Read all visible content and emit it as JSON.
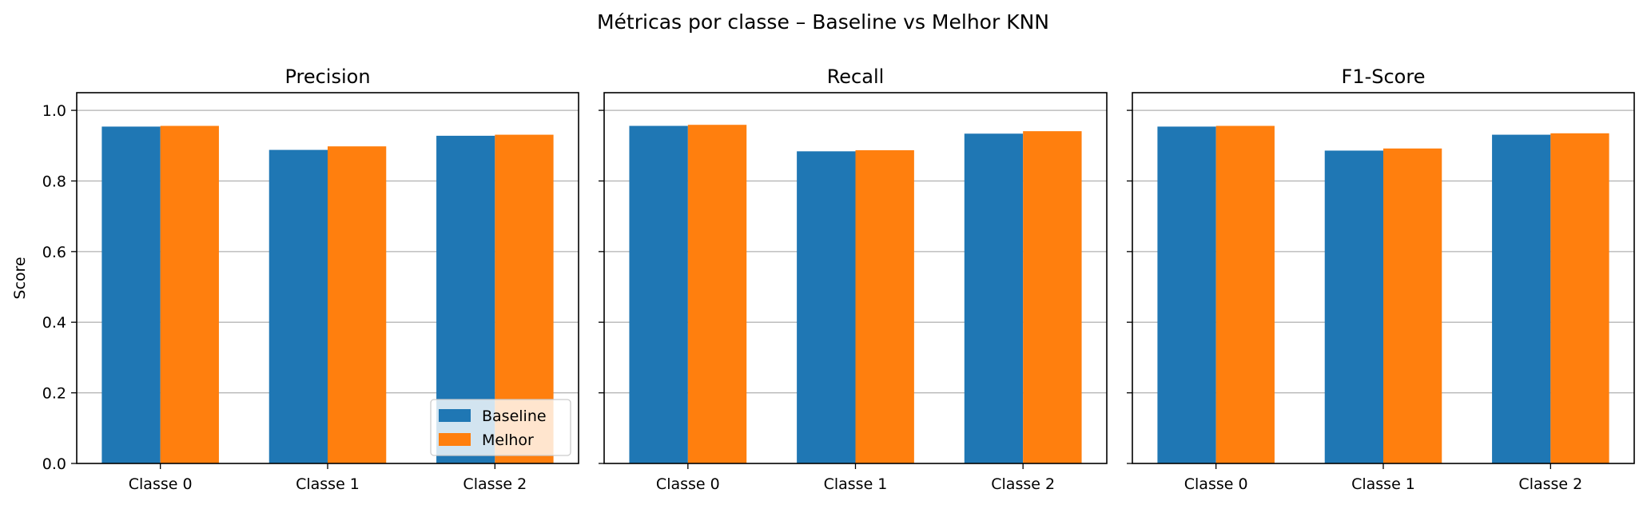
{
  "figure": {
    "suptitle": "Métricas por classe – Baseline vs Melhor KNN"
  },
  "colors": {
    "baseline": "#1f77b4",
    "melhor": "#ff7f0e",
    "grid": "#b0b0b0",
    "axis": "#000000"
  },
  "legend": {
    "placement": "lower-right",
    "entries": [
      "Baseline",
      "Melhor"
    ]
  },
  "chart_data": [
    {
      "type": "bar",
      "title": "Precision",
      "ylabel": "Score",
      "categories": [
        "Classe 0",
        "Classe 1",
        "Classe 2"
      ],
      "ylim": [
        0,
        1.05
      ],
      "yticks": [
        "0.0",
        "0.2",
        "0.4",
        "0.6",
        "0.8",
        "1.0"
      ],
      "grid": "y",
      "series": [
        {
          "name": "Baseline",
          "values": [
            0.954,
            0.888,
            0.928
          ]
        },
        {
          "name": "Melhor",
          "values": [
            0.956,
            0.898,
            0.931
          ]
        }
      ]
    },
    {
      "type": "bar",
      "title": "Recall",
      "ylabel": "",
      "categories": [
        "Classe 0",
        "Classe 1",
        "Classe 2"
      ],
      "ylim": [
        0,
        1.05
      ],
      "yticks": [
        "0.0",
        "0.2",
        "0.4",
        "0.6",
        "0.8",
        "1.0"
      ],
      "grid": "y",
      "series": [
        {
          "name": "Baseline",
          "values": [
            0.956,
            0.884,
            0.934
          ]
        },
        {
          "name": "Melhor",
          "values": [
            0.959,
            0.887,
            0.941
          ]
        }
      ]
    },
    {
      "type": "bar",
      "title": "F1-Score",
      "ylabel": "",
      "categories": [
        "Classe 0",
        "Classe 1",
        "Classe 2"
      ],
      "ylim": [
        0,
        1.05
      ],
      "yticks": [
        "0.0",
        "0.2",
        "0.4",
        "0.6",
        "0.8",
        "1.0"
      ],
      "grid": "y",
      "series": [
        {
          "name": "Baseline",
          "values": [
            0.954,
            0.886,
            0.931
          ]
        },
        {
          "name": "Melhor",
          "values": [
            0.956,
            0.892,
            0.935
          ]
        }
      ]
    }
  ]
}
